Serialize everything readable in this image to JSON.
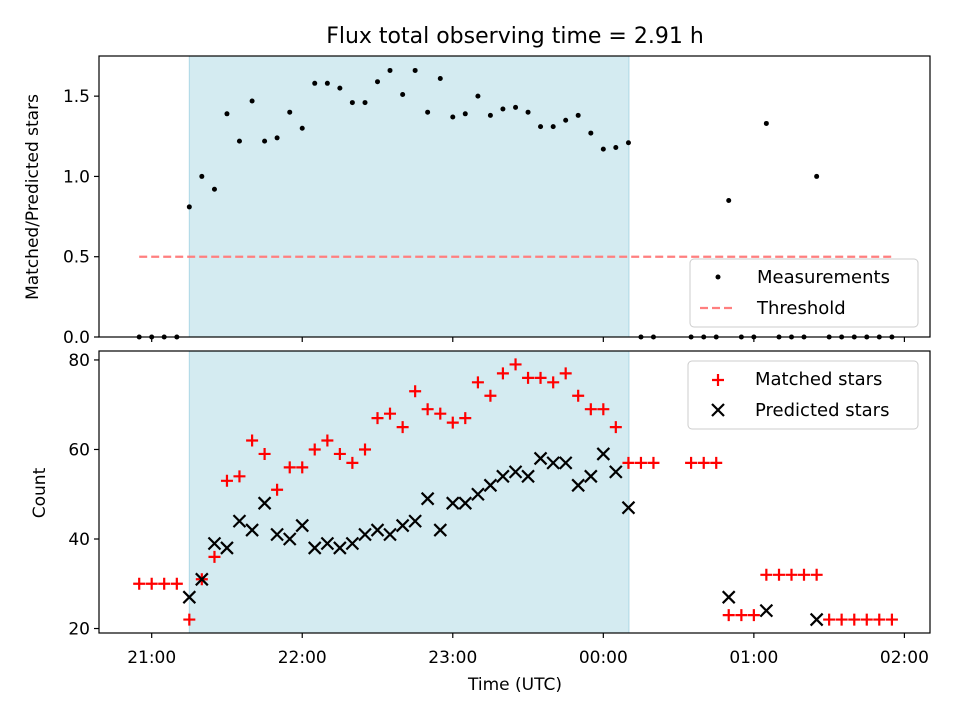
{
  "chart_data": [
    {
      "type": "scatter",
      "title": "Flux total observing time = 2.91 h",
      "xlabel": "",
      "ylabel": "Matched/Predicted stars",
      "xlim": [
        -0.35,
        5.17
      ],
      "ylim": [
        0,
        1.75
      ],
      "x_ticks": [
        0,
        1,
        2,
        3,
        4,
        5
      ],
      "x_ticklabels": [
        "",
        "",
        "",
        "",
        "",
        ""
      ],
      "y_ticks": [
        0,
        0.5,
        1.0,
        1.5
      ],
      "y_ticklabels": [
        "0.0",
        "0.5",
        "1.0",
        "1.5"
      ],
      "shaded_span": {
        "x_start": 0.25,
        "x_end": 3.17,
        "color": "#d4ebf1"
      },
      "legend": {
        "placement": "lower right",
        "entries": [
          "Measurements",
          "Threshold"
        ]
      },
      "series": [
        {
          "name": "Measurements",
          "marker": "dot",
          "color": "#000000",
          "points": [
            [
              -0.083,
              0
            ],
            [
              0,
              0
            ],
            [
              0.083,
              0
            ],
            [
              0.167,
              0
            ],
            [
              0.25,
              0.81
            ],
            [
              0.333,
              1.0
            ],
            [
              0.417,
              0.92
            ],
            [
              0.5,
              1.39
            ],
            [
              0.583,
              1.22
            ],
            [
              0.667,
              1.47
            ],
            [
              0.75,
              1.22
            ],
            [
              0.833,
              1.24
            ],
            [
              0.917,
              1.4
            ],
            [
              1.0,
              1.3
            ],
            [
              1.083,
              1.58
            ],
            [
              1.167,
              1.58
            ],
            [
              1.25,
              1.55
            ],
            [
              1.333,
              1.46
            ],
            [
              1.417,
              1.46
            ],
            [
              1.5,
              1.59
            ],
            [
              1.583,
              1.66
            ],
            [
              1.667,
              1.51
            ],
            [
              1.75,
              1.66
            ],
            [
              1.833,
              1.4
            ],
            [
              1.917,
              1.61
            ],
            [
              2.0,
              1.37
            ],
            [
              2.083,
              1.39
            ],
            [
              2.167,
              1.5
            ],
            [
              2.25,
              1.38
            ],
            [
              2.333,
              1.42
            ],
            [
              2.417,
              1.43
            ],
            [
              2.5,
              1.4
            ],
            [
              2.583,
              1.31
            ],
            [
              2.667,
              1.31
            ],
            [
              2.75,
              1.35
            ],
            [
              2.833,
              1.38
            ],
            [
              2.917,
              1.27
            ],
            [
              3.0,
              1.17
            ],
            [
              3.083,
              1.18
            ],
            [
              3.167,
              1.21
            ],
            [
              3.25,
              0
            ],
            [
              3.333,
              0
            ],
            [
              3.583,
              0
            ],
            [
              3.667,
              0
            ],
            [
              3.75,
              0
            ],
            [
              3.833,
              0.85
            ],
            [
              3.917,
              0
            ],
            [
              4.0,
              0
            ],
            [
              4.083,
              1.33
            ],
            [
              4.167,
              0
            ],
            [
              4.25,
              0
            ],
            [
              4.333,
              0
            ],
            [
              4.417,
              1.0
            ],
            [
              4.5,
              0
            ],
            [
              4.583,
              0
            ],
            [
              4.667,
              0
            ],
            [
              4.75,
              0
            ],
            [
              4.833,
              0
            ],
            [
              4.917,
              0
            ]
          ]
        },
        {
          "name": "Threshold",
          "type": "line",
          "style": "dashed",
          "color": "#ff7f7f",
          "points": [
            [
              -0.083,
              0.5
            ],
            [
              4.917,
              0.5
            ]
          ]
        }
      ]
    },
    {
      "type": "scatter",
      "title": "",
      "xlabel": "Time (UTC)",
      "ylabel": "Count",
      "xlim": [
        -0.35,
        5.17
      ],
      "ylim": [
        19,
        82
      ],
      "x_ticks": [
        0,
        1,
        2,
        3,
        4,
        5
      ],
      "x_ticklabels": [
        "21:00",
        "22:00",
        "23:00",
        "00:00",
        "01:00",
        "02:00"
      ],
      "y_ticks": [
        20,
        40,
        60,
        80
      ],
      "y_ticklabels": [
        "20",
        "40",
        "60",
        "80"
      ],
      "shaded_span": {
        "x_start": 0.25,
        "x_end": 3.17,
        "color": "#d4ebf1"
      },
      "legend": {
        "placement": "top-right",
        "entries": [
          "Matched stars",
          "Predicted stars"
        ]
      },
      "series": [
        {
          "name": "Matched stars",
          "marker": "plus",
          "color": "#ff0000",
          "points": [
            [
              -0.083,
              30
            ],
            [
              0,
              30
            ],
            [
              0.083,
              30
            ],
            [
              0.167,
              30
            ],
            [
              0.25,
              22
            ],
            [
              0.333,
              31
            ],
            [
              0.417,
              36
            ],
            [
              0.5,
              53
            ],
            [
              0.583,
              54
            ],
            [
              0.667,
              62
            ],
            [
              0.75,
              59
            ],
            [
              0.833,
              51
            ],
            [
              0.917,
              56
            ],
            [
              1.0,
              56
            ],
            [
              1.083,
              60
            ],
            [
              1.167,
              62
            ],
            [
              1.25,
              59
            ],
            [
              1.333,
              57
            ],
            [
              1.417,
              60
            ],
            [
              1.5,
              67
            ],
            [
              1.583,
              68
            ],
            [
              1.667,
              65
            ],
            [
              1.75,
              73
            ],
            [
              1.833,
              69
            ],
            [
              1.917,
              68
            ],
            [
              2.0,
              66
            ],
            [
              2.083,
              67
            ],
            [
              2.167,
              75
            ],
            [
              2.25,
              72
            ],
            [
              2.333,
              77
            ],
            [
              2.417,
              79
            ],
            [
              2.5,
              76
            ],
            [
              2.583,
              76
            ],
            [
              2.667,
              75
            ],
            [
              2.75,
              77
            ],
            [
              2.833,
              72
            ],
            [
              2.917,
              69
            ],
            [
              3.0,
              69
            ],
            [
              3.083,
              65
            ],
            [
              3.167,
              57
            ],
            [
              3.25,
              57
            ],
            [
              3.333,
              57
            ],
            [
              3.583,
              57
            ],
            [
              3.667,
              57
            ],
            [
              3.75,
              57
            ],
            [
              3.833,
              23
            ],
            [
              3.917,
              23
            ],
            [
              4.0,
              23
            ],
            [
              4.083,
              32
            ],
            [
              4.167,
              32
            ],
            [
              4.25,
              32
            ],
            [
              4.333,
              32
            ],
            [
              4.417,
              32
            ],
            [
              4.5,
              22
            ],
            [
              4.583,
              22
            ],
            [
              4.667,
              22
            ],
            [
              4.75,
              22
            ],
            [
              4.833,
              22
            ],
            [
              4.917,
              22
            ]
          ]
        },
        {
          "name": "Predicted stars",
          "marker": "x",
          "color": "#000000",
          "points": [
            [
              0.25,
              27
            ],
            [
              0.333,
              31
            ],
            [
              0.417,
              39
            ],
            [
              0.5,
              38
            ],
            [
              0.583,
              44
            ],
            [
              0.667,
              42
            ],
            [
              0.75,
              48
            ],
            [
              0.833,
              41
            ],
            [
              0.917,
              40
            ],
            [
              1.0,
              43
            ],
            [
              1.083,
              38
            ],
            [
              1.167,
              39
            ],
            [
              1.25,
              38
            ],
            [
              1.333,
              39
            ],
            [
              1.417,
              41
            ],
            [
              1.5,
              42
            ],
            [
              1.583,
              41
            ],
            [
              1.667,
              43
            ],
            [
              1.75,
              44
            ],
            [
              1.833,
              49
            ],
            [
              1.917,
              42
            ],
            [
              2.0,
              48
            ],
            [
              2.083,
              48
            ],
            [
              2.167,
              50
            ],
            [
              2.25,
              52
            ],
            [
              2.333,
              54
            ],
            [
              2.417,
              55
            ],
            [
              2.5,
              54
            ],
            [
              2.583,
              58
            ],
            [
              2.667,
              57
            ],
            [
              2.75,
              57
            ],
            [
              2.833,
              52
            ],
            [
              2.917,
              54
            ],
            [
              3.0,
              59
            ],
            [
              3.083,
              55
            ],
            [
              3.167,
              47
            ],
            [
              3.833,
              27
            ],
            [
              4.083,
              24
            ],
            [
              4.417,
              22
            ]
          ]
        }
      ]
    }
  ]
}
